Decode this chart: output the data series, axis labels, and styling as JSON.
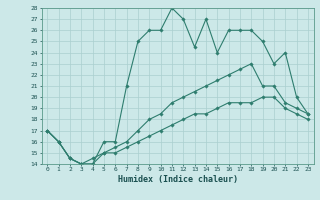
{
  "xlabel": "Humidex (Indice chaleur)",
  "ylabel": "",
  "xlim": [
    -0.5,
    23.5
  ],
  "ylim": [
    14,
    28
  ],
  "xticks": [
    0,
    1,
    2,
    3,
    4,
    5,
    6,
    7,
    8,
    9,
    10,
    11,
    12,
    13,
    14,
    15,
    16,
    17,
    18,
    19,
    20,
    21,
    22,
    23
  ],
  "yticks": [
    14,
    15,
    16,
    17,
    18,
    19,
    20,
    21,
    22,
    23,
    24,
    25,
    26,
    27,
    28
  ],
  "background_color": "#cce8e8",
  "line_color": "#2e7d6e",
  "grid_color": "#aacfcf",
  "line1_x": [
    0,
    1,
    2,
    3,
    4,
    5,
    6,
    7,
    8,
    9,
    10,
    11,
    12,
    13,
    14,
    15,
    16,
    17,
    18,
    19,
    20,
    21,
    22,
    23
  ],
  "line1_y": [
    17,
    16,
    14.5,
    14,
    14,
    16,
    16,
    21,
    25,
    26,
    26,
    28,
    27,
    24.5,
    27,
    24,
    26,
    26,
    26,
    25,
    23,
    24,
    20,
    18.5
  ],
  "line2_x": [
    0,
    1,
    2,
    3,
    4,
    5,
    6,
    7,
    8,
    9,
    10,
    11,
    12,
    13,
    14,
    15,
    16,
    17,
    18,
    19,
    20,
    21,
    22,
    23
  ],
  "line2_y": [
    17,
    16,
    14.5,
    14,
    14,
    15,
    15.5,
    16,
    17,
    18,
    18.5,
    19.5,
    20,
    20.5,
    21,
    21.5,
    22,
    22.5,
    23,
    21,
    21,
    19.5,
    19,
    18.5
  ],
  "line3_x": [
    0,
    1,
    2,
    3,
    4,
    5,
    6,
    7,
    8,
    9,
    10,
    11,
    12,
    13,
    14,
    15,
    16,
    17,
    18,
    19,
    20,
    21,
    22,
    23
  ],
  "line3_y": [
    17,
    16,
    14.5,
    14,
    14.5,
    15,
    15,
    15.5,
    16,
    16.5,
    17,
    17.5,
    18,
    18.5,
    18.5,
    19,
    19.5,
    19.5,
    19.5,
    20,
    20,
    19,
    18.5,
    18
  ]
}
